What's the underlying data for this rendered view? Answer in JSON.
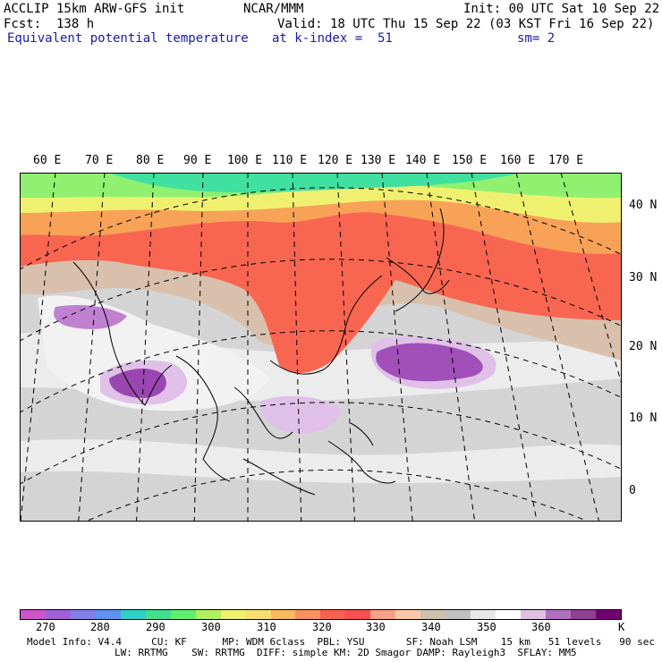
{
  "header": {
    "model": "ACCLIP 15km ARW-GFS init",
    "org": "NCAR/MMM",
    "init": "Init: 00 UTC Sat 10 Sep 22",
    "fcst": "Fcst:  138 h",
    "valid": "Valid: 18 UTC Thu 15 Sep 22 (03 KST Fri 16 Sep 22)",
    "field": "Equivalent potential temperature",
    "level": "at k-index =  51",
    "smooth": "sm= 2"
  },
  "map": {
    "lon_labels": [
      "60 E",
      "70 E",
      "80 E",
      "90 E",
      "100 E",
      "110 E",
      "120 E",
      "130 E",
      "140 E",
      "150 E",
      "160 E",
      "170 E"
    ],
    "lat_labels": [
      "40 N",
      "30 N",
      "20 N",
      "10 N",
      "0"
    ]
  },
  "colorbar": {
    "colors": [
      "#cc55cc",
      "#a060d8",
      "#8080e8",
      "#6090f0",
      "#30d0c8",
      "#40e090",
      "#60f070",
      "#b0f060",
      "#f0f070",
      "#f8e070",
      "#f8b860",
      "#f89060",
      "#f86050",
      "#f85050",
      "#f8a088",
      "#f8c8a8",
      "#d0c0b0",
      "#c0c0c0",
      "#e8e8e8",
      "#ffffff",
      "#e0c0e0",
      "#b070c0",
      "#904090",
      "#700070"
    ],
    "labels": [
      "270",
      "280",
      "290",
      "300",
      "310",
      "320",
      "330",
      "340",
      "350",
      "360"
    ],
    "unit": "K"
  },
  "footer": {
    "line1": "Model Info: V4.4     CU: KF      MP: WDM 6class  PBL: YSU       SF: Noah LSM    15 km   51 levels   90 sec",
    "line2": "LW: RRTMG    SW: RRTMG  DIFF: simple KM: 2D Smagor DAMP: Rayleigh3  SFLAY: MM5"
  }
}
